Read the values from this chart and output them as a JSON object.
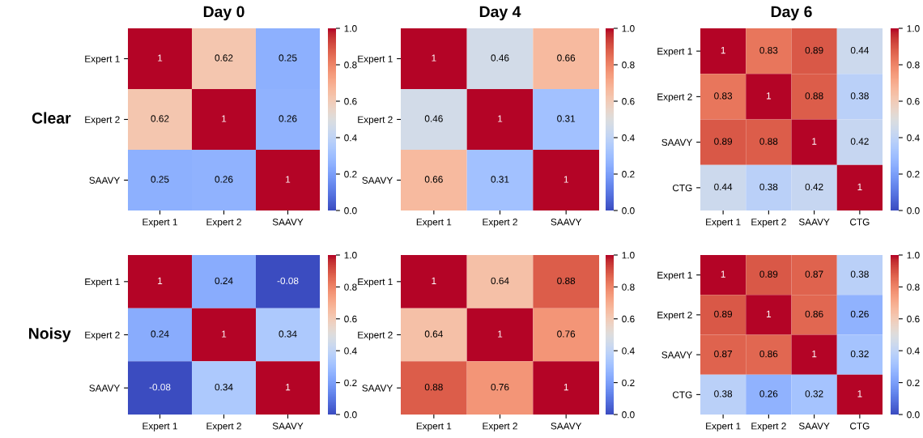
{
  "chart_data": [
    {
      "type": "heatmap",
      "title": "Day 0",
      "ylabel": "Clear",
      "categories": [
        "Expert 1",
        "Expert 2",
        "SAAVY"
      ],
      "y_categories": [
        "Expert 1",
        "Expert 2",
        "SAAVY"
      ],
      "cells": [
        [
          1,
          0.62,
          0.25
        ],
        [
          0.62,
          1,
          0.26
        ],
        [
          0.25,
          0.26,
          1
        ]
      ],
      "clim": [
        0,
        1
      ],
      "cticks": [
        {
          "value": 0,
          "label": "0.0"
        },
        {
          "value": 0.2,
          "label": "0.2"
        },
        {
          "value": 0.4,
          "label": "0.4"
        },
        {
          "value": 0.6,
          "label": "0.6"
        },
        {
          "value": 0.8,
          "label": "0.8"
        },
        {
          "value": 1,
          "label": "1.0"
        }
      ],
      "data_labels": true
    },
    {
      "type": "heatmap",
      "title": "Day 4",
      "categories": [
        "Expert 1",
        "Expert 2",
        "SAAVY"
      ],
      "y_categories": [
        "Expert 1",
        "Expert 2",
        "SAAVY"
      ],
      "cells": [
        [
          1,
          0.46,
          0.66
        ],
        [
          0.46,
          1,
          0.31
        ],
        [
          0.66,
          0.31,
          1
        ]
      ],
      "clim": [
        0,
        1
      ],
      "cticks": [
        {
          "value": 0,
          "label": "0.0"
        },
        {
          "value": 0.2,
          "label": "0.2"
        },
        {
          "value": 0.4,
          "label": "0.4"
        },
        {
          "value": 0.6,
          "label": "0.6"
        },
        {
          "value": 0.8,
          "label": "0.8"
        },
        {
          "value": 1,
          "label": "1.0"
        }
      ],
      "data_labels": true
    },
    {
      "type": "heatmap",
      "title": "Day 6",
      "categories": [
        "Expert 1",
        "Expert 2",
        "SAAVY",
        "CTG"
      ],
      "y_categories": [
        "Expert 1",
        "Expert 2",
        "SAAVY",
        "CTG"
      ],
      "cells": [
        [
          1,
          0.83,
          0.89,
          0.44
        ],
        [
          0.83,
          1,
          0.88,
          0.38
        ],
        [
          0.89,
          0.88,
          1,
          0.42
        ],
        [
          0.44,
          0.38,
          0.42,
          1
        ]
      ],
      "clim": [
        0,
        1
      ],
      "cticks": [
        {
          "value": 0,
          "label": "0.0"
        },
        {
          "value": 0.2,
          "label": "0.2"
        },
        {
          "value": 0.4,
          "label": "0.4"
        },
        {
          "value": 0.6,
          "label": "0.6"
        },
        {
          "value": 0.8,
          "label": "0.8"
        },
        {
          "value": 1,
          "label": "1.0"
        }
      ],
      "data_labels": true
    },
    {
      "type": "heatmap",
      "ylabel": "Noisy",
      "categories": [
        "Expert 1",
        "Expert 2",
        "SAAVY"
      ],
      "y_categories": [
        "Expert 1",
        "Expert 2",
        "SAAVY"
      ],
      "cells": [
        [
          1,
          0.24,
          -0.08
        ],
        [
          0.24,
          1,
          0.34
        ],
        [
          -0.08,
          0.34,
          1
        ]
      ],
      "clim": [
        0,
        1
      ],
      "cticks": [
        {
          "value": 0,
          "label": "0.0"
        },
        {
          "value": 0.2,
          "label": "0.2"
        },
        {
          "value": 0.4,
          "label": "0.4"
        },
        {
          "value": 0.6,
          "label": "0.6"
        },
        {
          "value": 0.8,
          "label": "0.8"
        },
        {
          "value": 1,
          "label": "1.0"
        }
      ],
      "data_labels": true
    },
    {
      "type": "heatmap",
      "categories": [
        "Expert 1",
        "Expert 2",
        "SAAVY"
      ],
      "y_categories": [
        "Expert 1",
        "Expert 2",
        "SAAVY"
      ],
      "cells": [
        [
          1,
          0.64,
          0.88
        ],
        [
          0.64,
          1,
          0.76
        ],
        [
          0.88,
          0.76,
          1
        ]
      ],
      "clim": [
        0,
        1
      ],
      "cticks": [
        {
          "value": 0,
          "label": "0.0"
        },
        {
          "value": 0.2,
          "label": "0.2"
        },
        {
          "value": 0.4,
          "label": "0.4"
        },
        {
          "value": 0.6,
          "label": "0.6"
        },
        {
          "value": 0.8,
          "label": "0.8"
        },
        {
          "value": 1,
          "label": "1.0"
        }
      ],
      "data_labels": true
    },
    {
      "type": "heatmap",
      "categories": [
        "Expert 1",
        "Expert 2",
        "SAAVY",
        "CTG"
      ],
      "y_categories": [
        "Expert 1",
        "Expert 2",
        "SAAVY",
        "CTG"
      ],
      "cells": [
        [
          1,
          0.89,
          0.87,
          0.38
        ],
        [
          0.89,
          1,
          0.86,
          0.26
        ],
        [
          0.87,
          0.86,
          1,
          0.32
        ],
        [
          0.38,
          0.26,
          0.32,
          1
        ]
      ],
      "clim": [
        0,
        1
      ],
      "cticks": [
        {
          "value": 0,
          "label": "0.0"
        },
        {
          "value": 0.2,
          "label": "0.2"
        },
        {
          "value": 0.4,
          "label": "0.4"
        },
        {
          "value": 0.6,
          "label": "0.6"
        },
        {
          "value": 0.8,
          "label": "0.8"
        },
        {
          "value": 1,
          "label": "1.0"
        }
      ],
      "data_labels": true
    }
  ]
}
